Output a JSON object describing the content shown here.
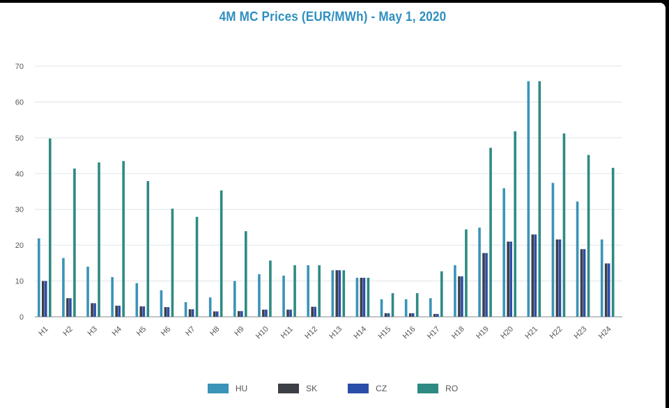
{
  "chart_data": {
    "type": "bar",
    "title": "4M MC Prices (EUR/MWh) - May 1, 2020",
    "xlabel": "",
    "ylabel": "",
    "ylim": [
      0,
      70
    ],
    "yticks": [
      0,
      10,
      20,
      30,
      40,
      50,
      60,
      70
    ],
    "grid": true,
    "legend_position": "bottom",
    "categories": [
      "H1",
      "H2",
      "H3",
      "H4",
      "H5",
      "H6",
      "H7",
      "H8",
      "H9",
      "H10",
      "H11",
      "H12",
      "H13",
      "H14",
      "H15",
      "H16",
      "H17",
      "H18",
      "H19",
      "H20",
      "H21",
      "H22",
      "H23",
      "H24"
    ],
    "series": [
      {
        "name": "HU",
        "color": "#3a93b8",
        "values": [
          21.9,
          16.4,
          14.0,
          11.1,
          9.4,
          7.4,
          4.1,
          5.4,
          10.0,
          11.9,
          11.5,
          14.4,
          13.0,
          10.9,
          4.9,
          4.9,
          5.2,
          14.4,
          24.9,
          35.9,
          65.8,
          37.4,
          32.2,
          21.6
        ]
      },
      {
        "name": "SK",
        "color": "#3d3f46",
        "values": [
          10.0,
          5.2,
          3.8,
          3.1,
          2.9,
          2.7,
          2.1,
          1.5,
          1.6,
          2.0,
          2.0,
          2.8,
          13.0,
          10.9,
          1.0,
          1.0,
          0.8,
          11.3,
          17.8,
          21.0,
          23.0,
          21.6,
          18.9,
          14.9
        ]
      },
      {
        "name": "CZ",
        "color": "#2b4ea8",
        "values": [
          10.0,
          5.2,
          3.8,
          3.1,
          2.9,
          2.7,
          2.1,
          1.5,
          1.6,
          2.0,
          2.0,
          2.8,
          13.0,
          10.9,
          1.0,
          1.0,
          0.8,
          11.3,
          17.8,
          21.0,
          23.0,
          21.6,
          18.9,
          14.9
        ]
      },
      {
        "name": "RO",
        "color": "#2e8a82",
        "values": [
          49.8,
          41.4,
          43.1,
          43.5,
          37.9,
          30.2,
          27.9,
          35.3,
          23.9,
          15.7,
          14.4,
          14.4,
          13.0,
          10.9,
          6.6,
          6.6,
          12.7,
          24.4,
          47.2,
          51.8,
          65.8,
          51.2,
          45.2,
          41.6
        ]
      }
    ]
  }
}
